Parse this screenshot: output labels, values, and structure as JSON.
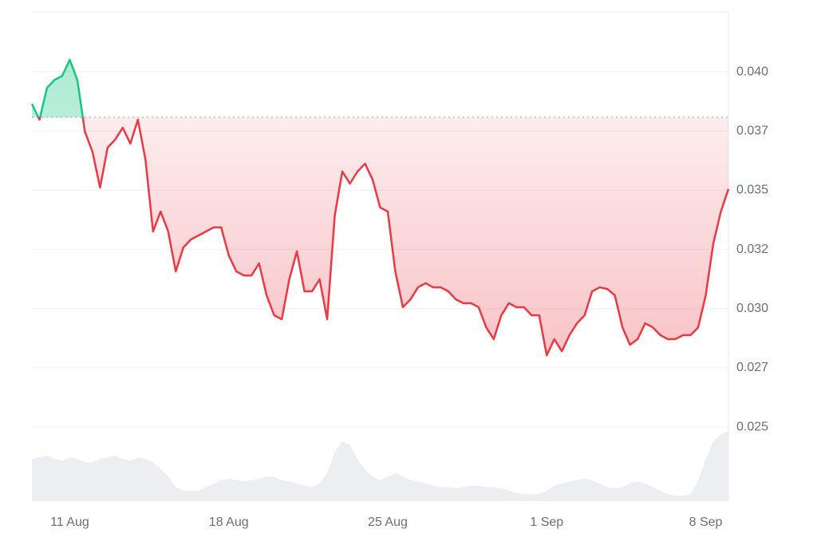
{
  "chart_data": {
    "type": "line",
    "categories": [
      null,
      null,
      null,
      null,
      null,
      "11 Aug",
      null,
      null,
      null,
      null,
      null,
      null,
      null,
      null,
      null,
      null,
      null,
      null,
      null,
      null,
      null,
      null,
      null,
      null,
      null,
      null,
      "18 Aug",
      null,
      null,
      null,
      null,
      null,
      null,
      null,
      null,
      null,
      null,
      null,
      null,
      null,
      null,
      null,
      null,
      null,
      null,
      null,
      null,
      "25 Aug",
      null,
      null,
      null,
      null,
      null,
      null,
      null,
      null,
      null,
      null,
      null,
      null,
      null,
      null,
      null,
      null,
      null,
      null,
      null,
      null,
      "1 Sep",
      null,
      null,
      null,
      null,
      null,
      null,
      null,
      null,
      null,
      null,
      null,
      null,
      null,
      null,
      null,
      null,
      null,
      null,
      null,
      null,
      "8 Sep",
      null,
      null,
      null
    ],
    "series": [
      {
        "color": "#ea3943",
        "color_above": "#16c784",
        "values": [
          0.03865,
          0.03798,
          0.03933,
          0.03966,
          0.03983,
          0.04051,
          0.03966,
          0.03747,
          0.03663,
          0.03511,
          0.0368,
          0.03714,
          0.03764,
          0.03697,
          0.03798,
          0.03629,
          0.03326,
          0.0341,
          0.03326,
          0.03157,
          0.03258,
          0.03292,
          0.03309,
          0.03326,
          0.03343,
          0.03343,
          0.03225,
          0.03157,
          0.0314,
          0.0314,
          0.03191,
          0.03056,
          0.02972,
          0.02955,
          0.03124,
          0.03242,
          0.03073,
          0.03073,
          0.03124,
          0.02955,
          0.03393,
          0.03579,
          0.03528,
          0.03579,
          0.03612,
          0.03545,
          0.03427,
          0.0341,
          0.03157,
          0.03006,
          0.03039,
          0.0309,
          0.03107,
          0.0309,
          0.0309,
          0.03073,
          0.03039,
          0.03023,
          0.03023,
          0.03006,
          0.02921,
          0.02871,
          0.02972,
          0.03023,
          0.03006,
          0.03006,
          0.02972,
          0.02972,
          0.02803,
          0.02871,
          0.0282,
          0.02888,
          0.02938,
          0.02972,
          0.03073,
          0.0309,
          0.03083,
          0.03056,
          0.02921,
          0.02847,
          0.02871,
          0.02938,
          0.02921,
          0.02888,
          0.02871,
          0.02871,
          0.02888,
          0.02888,
          0.02921,
          0.03056,
          0.03275,
          0.0341,
          0.03505
        ]
      },
      {
        "color": "#eceef1",
        "axis": "y2",
        "values": [
          60,
          62,
          65,
          60,
          58,
          62,
          60,
          55,
          55,
          60,
          62,
          65,
          60,
          58,
          62,
          60,
          55,
          45,
          35,
          20,
          15,
          15,
          15,
          20,
          25,
          30,
          32,
          30,
          28,
          30,
          32,
          35,
          35,
          30,
          28,
          25,
          22,
          20,
          25,
          40,
          70,
          85,
          80,
          60,
          45,
          35,
          30,
          35,
          40,
          35,
          30,
          28,
          25,
          22,
          20,
          20,
          18,
          20,
          22,
          22,
          20,
          20,
          18,
          15,
          12,
          10,
          10,
          10,
          15,
          22,
          25,
          28,
          30,
          32,
          30,
          25,
          20,
          18,
          20,
          25,
          28,
          25,
          20,
          15,
          10,
          8,
          8,
          10,
          30,
          60,
          85,
          95,
          100
        ]
      }
    ],
    "baseline": 0.03808,
    "ylim": [
      0.02187,
      0.04253
    ],
    "yticks": [
      {
        "value": 0.025,
        "label": "0.025"
      },
      {
        "value": 0.0275,
        "label": "0.027"
      },
      {
        "value": 0.03,
        "label": "0.030"
      },
      {
        "value": 0.0325,
        "label": "0.032"
      },
      {
        "value": 0.035,
        "label": "0.035"
      },
      {
        "value": 0.0375,
        "label": "0.037"
      },
      {
        "value": 0.04,
        "label": "0.040"
      }
    ],
    "y2lim": [
      0,
      100
    ],
    "grid": true
  }
}
